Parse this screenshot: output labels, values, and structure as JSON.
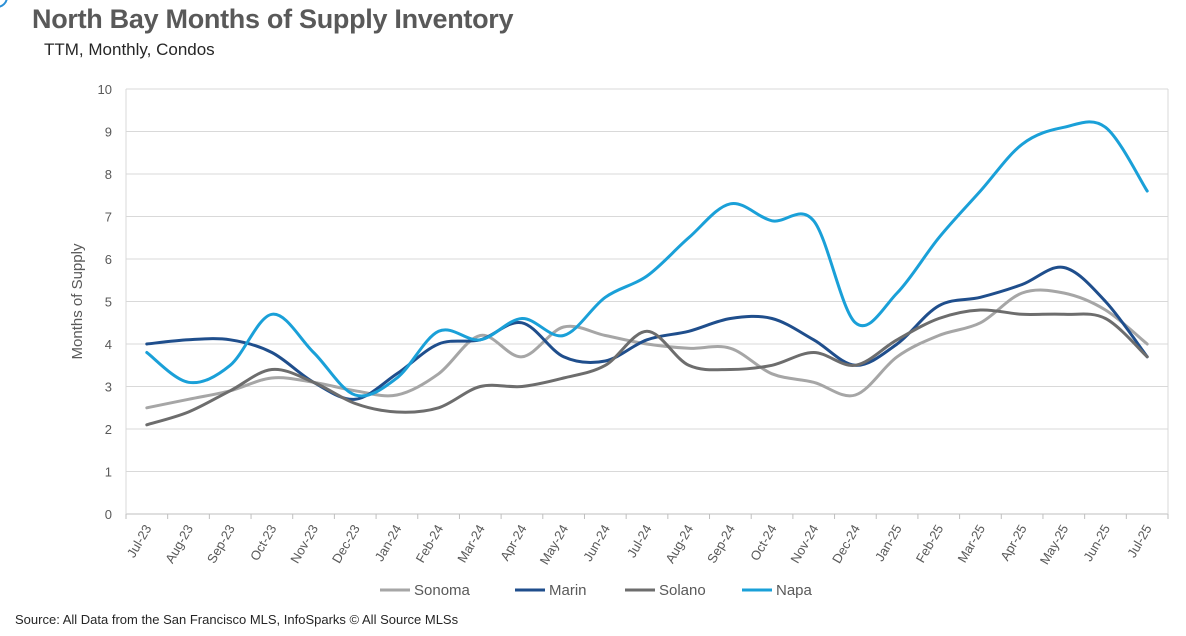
{
  "title": "North Bay Months of Supply Inventory",
  "subtitle": "TTM, Monthly, Condos",
  "source": "Source: All Data from the San Francisco MLS, InfoSparks © All Source MLSs",
  "chart_data": {
    "type": "line",
    "title": "North Bay Months of Supply Inventory",
    "subtitle": "TTM, Monthly, Condos",
    "xlabel": "",
    "ylabel": "Months of Supply",
    "ylim": [
      0,
      10
    ],
    "yticks": [
      0,
      1,
      2,
      3,
      4,
      5,
      6,
      7,
      8,
      9,
      10
    ],
    "grid": true,
    "legend_position": "bottom",
    "categories": [
      "Jul-23",
      "Aug-23",
      "Sep-23",
      "Oct-23",
      "Nov-23",
      "Dec-23",
      "Jan-24",
      "Feb-24",
      "Mar-24",
      "Apr-24",
      "May-24",
      "Jun-24",
      "Jul-24",
      "Aug-24",
      "Sep-24",
      "Oct-24",
      "Nov-24",
      "Dec-24",
      "Jan-25",
      "Feb-25",
      "Mar-25",
      "Apr-25",
      "May-25",
      "Jun-25",
      "Jul-25"
    ],
    "series": [
      {
        "name": "Sonoma",
        "color": "#a6a6a6",
        "values": [
          2.5,
          2.7,
          2.9,
          3.2,
          3.1,
          2.9,
          2.8,
          3.3,
          4.2,
          3.7,
          4.4,
          4.2,
          4.0,
          3.9,
          3.9,
          3.3,
          3.1,
          2.8,
          3.7,
          4.2,
          4.5,
          5.2,
          5.2,
          4.8,
          4.0
        ]
      },
      {
        "name": "Marin",
        "color": "#1f4e8c",
        "values": [
          4.0,
          4.1,
          4.1,
          3.8,
          3.1,
          2.7,
          3.3,
          4.0,
          4.1,
          4.5,
          3.7,
          3.6,
          4.1,
          4.3,
          4.6,
          4.6,
          4.1,
          3.5,
          4.0,
          4.9,
          5.1,
          5.4,
          5.8,
          5.0,
          3.7
        ]
      },
      {
        "name": "Solano",
        "color": "#6d6d6d",
        "values": [
          2.1,
          2.4,
          2.9,
          3.4,
          3.1,
          2.6,
          2.4,
          2.5,
          3.0,
          3.0,
          3.2,
          3.5,
          4.3,
          3.5,
          3.4,
          3.5,
          3.8,
          3.5,
          4.1,
          4.6,
          4.8,
          4.7,
          4.7,
          4.6,
          3.7
        ]
      },
      {
        "name": "Napa",
        "color": "#1aa0d8",
        "values": [
          3.8,
          3.1,
          3.5,
          4.7,
          3.8,
          2.8,
          3.2,
          4.3,
          4.1,
          4.6,
          4.2,
          5.1,
          5.6,
          6.5,
          7.3,
          6.9,
          6.9,
          4.5,
          5.2,
          6.5,
          7.6,
          8.7,
          9.1,
          9.1,
          7.6
        ]
      }
    ]
  }
}
